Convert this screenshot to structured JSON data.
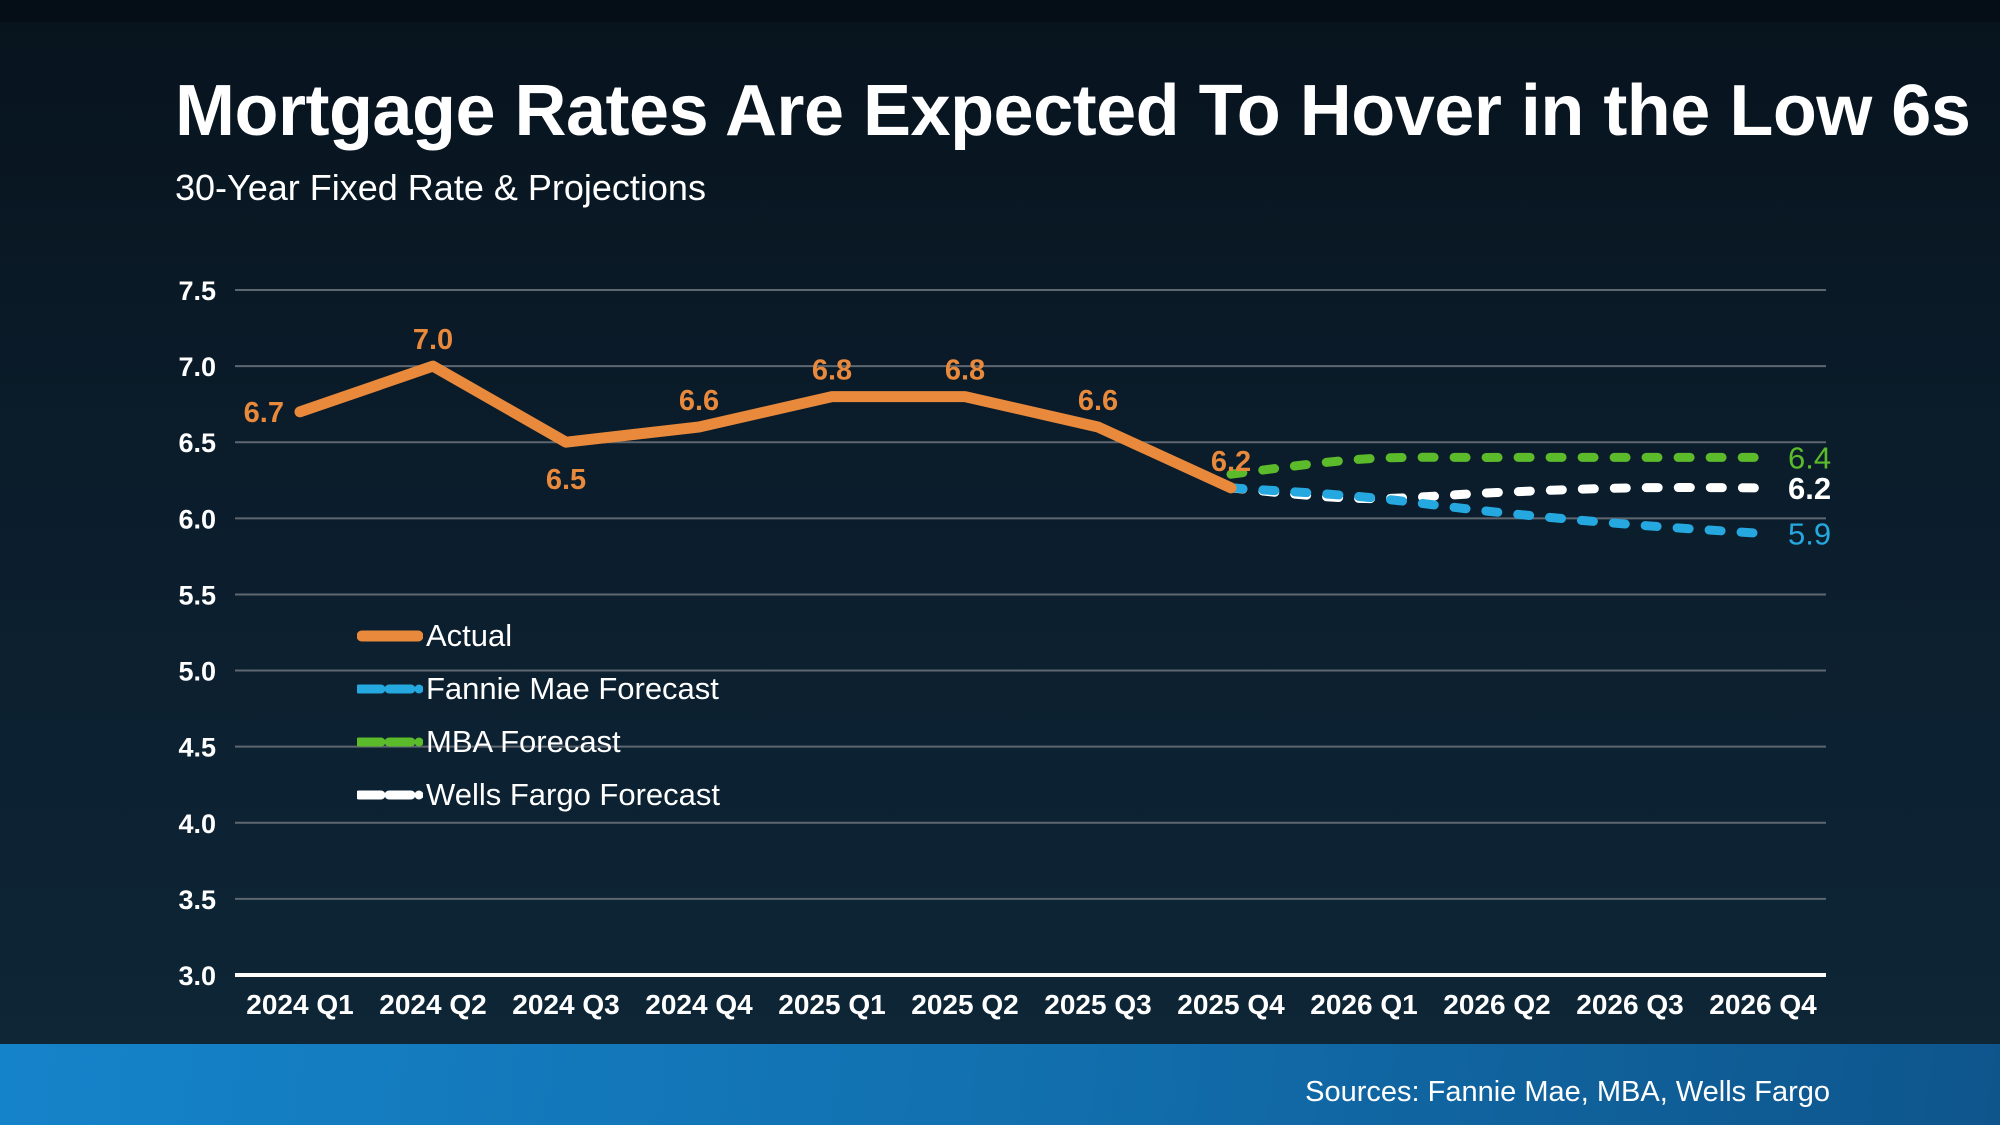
{
  "page": {
    "title": "Mortgage Rates Are Expected To Hover in the Low 6s",
    "subtitle": "30-Year Fixed Rate & Projections",
    "source": "Sources: Fannie Mae, MBA, Wells Fargo"
  },
  "colors": {
    "background_top": "#07131d",
    "background_bottom": "#0e2737",
    "top_strip": "#050e16",
    "gridline": "#5e6770",
    "axis_line": "#ffffff",
    "text": "#ffffff",
    "actual": "#e8893c",
    "fannie_mae": "#25a8e0",
    "mba": "#5cbb2b",
    "wells_fargo": "#ffffff",
    "footer_left": "#1583ca",
    "footer_right": "#0e558c"
  },
  "chart_data": {
    "type": "line",
    "title": "Mortgage Rates Are Expected To Hover in the Low 6s",
    "subtitle": "30-Year Fixed Rate & Projections",
    "xlabel": "",
    "ylabel": "",
    "ylim": [
      3.0,
      7.5
    ],
    "ytick_step": 0.5,
    "yticks": [
      "7.5",
      "7.0",
      "6.5",
      "6.0",
      "5.5",
      "5.0",
      "4.5",
      "4.0",
      "3.5",
      "3.0"
    ],
    "grid": true,
    "legend_position": "inside-left",
    "categories": [
      "2024 Q1",
      "2024 Q2",
      "2024 Q3",
      "2024 Q4",
      "2025 Q1",
      "2025 Q2",
      "2025 Q3",
      "2025 Q4",
      "2026 Q1",
      "2026 Q2",
      "2026 Q3",
      "2026 Q4"
    ],
    "series": [
      {
        "name": "Wells Fargo Forecast",
        "color": "#ffffff",
        "dash": true,
        "smooth": true,
        "start_index": 7,
        "values": [
          6.2,
          6.13,
          6.17,
          6.2,
          6.2
        ],
        "end_label": {
          "text": "6.2",
          "weight": 700
        }
      },
      {
        "name": "Fannie Mae Forecast",
        "color": "#25a8e0",
        "dash": true,
        "smooth": true,
        "start_index": 7,
        "values": [
          6.2,
          6.14,
          6.04,
          5.96,
          5.9
        ],
        "end_label": {
          "text": "5.9",
          "weight": 500
        }
      },
      {
        "name": "MBA Forecast",
        "color": "#5cbb2b",
        "dash": true,
        "smooth": true,
        "start_index": 7,
        "values": [
          6.29,
          6.39,
          6.4,
          6.4,
          6.4
        ],
        "end_label": {
          "text": "6.4",
          "weight": 500
        }
      },
      {
        "name": "Actual",
        "color": "#e8893c",
        "dash": false,
        "smooth": false,
        "start_index": 0,
        "values": [
          6.7,
          7.0,
          6.5,
          6.6,
          6.8,
          6.8,
          6.6,
          6.2
        ],
        "point_labels": [
          {
            "text": "6.7",
            "placement": "left"
          },
          {
            "text": "7.0",
            "placement": "above"
          },
          {
            "text": "6.5",
            "placement": "below"
          },
          {
            "text": "6.6",
            "placement": "above"
          },
          {
            "text": "6.8",
            "placement": "above"
          },
          {
            "text": "6.8",
            "placement": "above"
          },
          {
            "text": "6.6",
            "placement": "above"
          },
          {
            "text": "6.2",
            "placement": "above"
          }
        ]
      }
    ],
    "legend_order": [
      "Actual",
      "Fannie Mae Forecast",
      "MBA Forecast",
      "Wells Fargo Forecast"
    ]
  }
}
